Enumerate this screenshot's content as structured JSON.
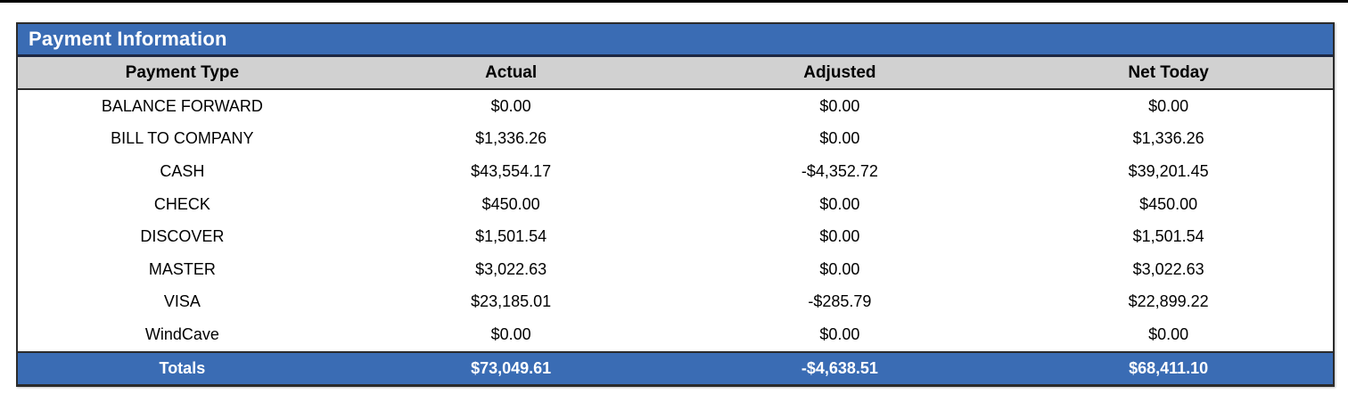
{
  "colors": {
    "accent_blue": "#3a6cb4",
    "header_gray": "#d1d1d1"
  },
  "table": {
    "title": "Payment Information",
    "columns": [
      "Payment Type",
      "Actual",
      "Adjusted",
      "Net Today"
    ],
    "rows": [
      {
        "type": "BALANCE FORWARD",
        "actual": "$0.00",
        "adjusted": "$0.00",
        "net": "$0.00"
      },
      {
        "type": "BILL TO COMPANY",
        "actual": "$1,336.26",
        "adjusted": "$0.00",
        "net": "$1,336.26"
      },
      {
        "type": "CASH",
        "actual": "$43,554.17",
        "adjusted": "-$4,352.72",
        "net": "$39,201.45"
      },
      {
        "type": "CHECK",
        "actual": "$450.00",
        "adjusted": "$0.00",
        "net": "$450.00"
      },
      {
        "type": "DISCOVER",
        "actual": "$1,501.54",
        "adjusted": "$0.00",
        "net": "$1,501.54"
      },
      {
        "type": "MASTER",
        "actual": "$3,022.63",
        "adjusted": "$0.00",
        "net": "$3,022.63"
      },
      {
        "type": "VISA",
        "actual": "$23,185.01",
        "adjusted": "-$285.79",
        "net": "$22,899.22"
      },
      {
        "type": "WindCave",
        "actual": "$0.00",
        "adjusted": "$0.00",
        "net": "$0.00"
      }
    ],
    "totals": {
      "label": "Totals",
      "actual": "$73,049.61",
      "adjusted": "-$4,638.51",
      "net": "$68,411.10"
    }
  }
}
